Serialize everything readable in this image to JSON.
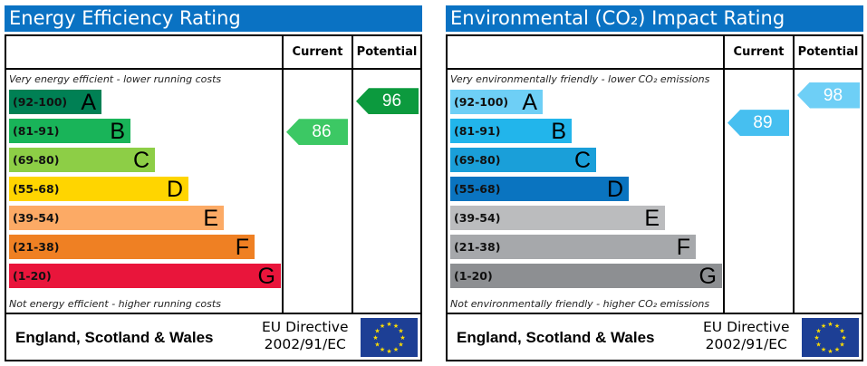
{
  "panels": [
    {
      "title": "Energy Efficiency Rating",
      "col_current": "Current",
      "col_potential": "Potential",
      "top_note": "Very energy efficient - lower running costs",
      "bottom_note": "Not energy efficient - higher running costs",
      "bands": [
        {
          "range": "(92-100)",
          "letter": "A",
          "color": "#008054"
        },
        {
          "range": "(81-91)",
          "letter": "B",
          "color": "#19b459"
        },
        {
          "range": "(69-80)",
          "letter": "C",
          "color": "#8dce46"
        },
        {
          "range": "(55-68)",
          "letter": "D",
          "color": "#ffd500"
        },
        {
          "range": "(39-54)",
          "letter": "E",
          "color": "#fcaa65"
        },
        {
          "range": "(21-38)",
          "letter": "F",
          "color": "#ef8023"
        },
        {
          "range": "(1-20)",
          "letter": "G",
          "color": "#e9153b"
        }
      ],
      "current": {
        "value": 86,
        "label": "86",
        "color": "#3cc864"
      },
      "potential": {
        "value": 96,
        "label": "96",
        "color": "#0c9a3e"
      },
      "footer": {
        "region": "England, Scotland & Wales",
        "directive_line1": "EU Directive",
        "directive_line2": "2002/91/EC"
      }
    },
    {
      "title": "Environmental (CO₂) Impact Rating",
      "col_current": "Current",
      "col_potential": "Potential",
      "top_note": "Very environmentally friendly - lower CO₂ emissions",
      "bottom_note": "Not environmentally friendly - higher CO₂ emissions",
      "bands": [
        {
          "range": "(92-100)",
          "letter": "A",
          "color": "#6ecff6"
        },
        {
          "range": "(81-91)",
          "letter": "B",
          "color": "#22b5eb"
        },
        {
          "range": "(69-80)",
          "letter": "C",
          "color": "#1a9fd9"
        },
        {
          "range": "(55-68)",
          "letter": "D",
          "color": "#0a74c0"
        },
        {
          "range": "(39-54)",
          "letter": "E",
          "color": "#bbbcbe"
        },
        {
          "range": "(21-38)",
          "letter": "F",
          "color": "#a6a8ab"
        },
        {
          "range": "(1-20)",
          "letter": "G",
          "color": "#8d8f92"
        }
      ],
      "current": {
        "value": 89,
        "label": "89",
        "color": "#46bff0"
      },
      "potential": {
        "value": 98,
        "label": "98",
        "color": "#6ecff6"
      },
      "footer": {
        "region": "England, Scotland & Wales",
        "directive_line1": "EU Directive",
        "directive_line2": "2002/91/EC"
      }
    }
  ],
  "chart_data": [
    {
      "type": "bar",
      "title": "Energy Efficiency Rating",
      "categories": [
        "A",
        "B",
        "C",
        "D",
        "E",
        "F",
        "G"
      ],
      "ranges": [
        "92-100",
        "81-91",
        "69-80",
        "55-68",
        "39-54",
        "21-38",
        "1-20"
      ],
      "current": 86,
      "potential": 96
    },
    {
      "type": "bar",
      "title": "Environmental (CO₂) Impact Rating",
      "categories": [
        "A",
        "B",
        "C",
        "D",
        "E",
        "F",
        "G"
      ],
      "ranges": [
        "92-100",
        "81-91",
        "69-80",
        "55-68",
        "39-54",
        "21-38",
        "1-20"
      ],
      "current": 89,
      "potential": 98
    }
  ]
}
